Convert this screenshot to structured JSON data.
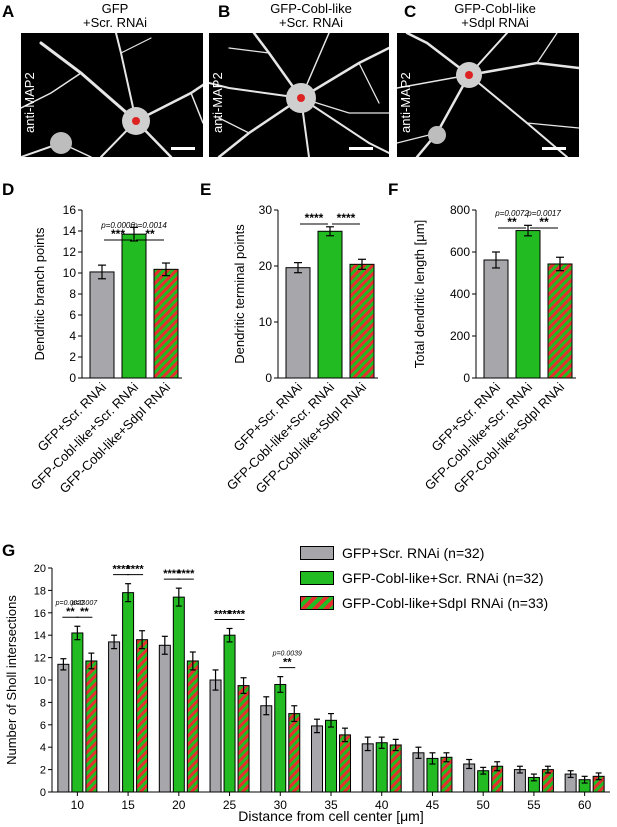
{
  "panels": {
    "A": {
      "letter": "A",
      "title_line1": "GFP",
      "title_line2": "+Scr. RNAi",
      "stain": "anti-MAP2"
    },
    "B": {
      "letter": "B",
      "title_line1": "GFP-Cobl-like",
      "title_line2": "+Scr. RNAi",
      "stain": "anti-MAP2"
    },
    "C": {
      "letter": "C",
      "title_line1": "GFP-Cobl-like",
      "title_line2": "+Sdpl RNAi",
      "stain": "anti-MAP2"
    },
    "D": {
      "letter": "D"
    },
    "E": {
      "letter": "E"
    },
    "F": {
      "letter": "F"
    },
    "G": {
      "letter": "G"
    }
  },
  "colors": {
    "gray": "#a7a7ab",
    "green": "#22bb22",
    "red": "#e53030",
    "bg": "#ffffff"
  },
  "chart_data": [
    {
      "id": "D",
      "type": "bar",
      "categories": [
        "GFP+Scr. RNAi",
        "GFP-Cobl-like+Scr. RNAi",
        "GFP-Cobl-like+SdpI RNAi"
      ],
      "values": [
        10.1,
        13.7,
        10.35
      ],
      "errors": [
        0.65,
        0.65,
        0.6
      ],
      "ylabel": "Dendritic branch points",
      "ylim": [
        0,
        16
      ],
      "yticks": [
        0,
        2,
        4,
        6,
        8,
        10,
        12,
        14,
        16
      ],
      "significance": [
        {
          "from": 0,
          "to": 1,
          "stars": "***",
          "p": "p=0.0006"
        },
        {
          "from": 1,
          "to": 2,
          "stars": "**",
          "p": "p=0.0014"
        }
      ]
    },
    {
      "id": "E",
      "type": "bar",
      "categories": [
        "GFP+Scr. RNAi",
        "GFP-Cobl-like+Scr. RNAi",
        "GFP-Cobl-like+SdpI RNAi"
      ],
      "values": [
        19.7,
        26.2,
        20.3
      ],
      "errors": [
        0.9,
        0.8,
        0.9
      ],
      "ylabel": "Dendritic terminal points",
      "ylim": [
        0,
        30
      ],
      "yticks": [
        0,
        10,
        20,
        30
      ],
      "significance": [
        {
          "from": 0,
          "to": 1,
          "stars": "****",
          "p": ""
        },
        {
          "from": 1,
          "to": 2,
          "stars": "****",
          "p": ""
        }
      ]
    },
    {
      "id": "F",
      "type": "bar",
      "categories": [
        "GFP+Scr. RNAi",
        "GFP-Cobl-like+Scr. RNAi",
        "GFP-Cobl-like+SdpI RNAi"
      ],
      "values": [
        562,
        702,
        543
      ],
      "errors": [
        38,
        25,
        32
      ],
      "ylabel": "Total dendritic length [μm]",
      "ylim": [
        0,
        800
      ],
      "yticks": [
        0,
        200,
        400,
        600,
        800
      ],
      "significance": [
        {
          "from": 0,
          "to": 1,
          "stars": "**",
          "p": "p=0.0072"
        },
        {
          "from": 1,
          "to": 2,
          "stars": "**",
          "p": "p=0.0017"
        }
      ]
    },
    {
      "id": "G",
      "type": "bar",
      "categories": [
        "10",
        "15",
        "20",
        "25",
        "30",
        "35",
        "40",
        "45",
        "50",
        "55",
        "60"
      ],
      "xlabel": "Distance from cell center [μm]",
      "ylabel": "Number of Sholl intersections",
      "ylim": [
        0,
        20
      ],
      "yticks": [
        0,
        2,
        4,
        6,
        8,
        10,
        12,
        14,
        16,
        18,
        20
      ],
      "series": [
        {
          "name": "GFP+Scr. RNAi (n=32)",
          "values": [
            11.4,
            13.4,
            13.1,
            10.0,
            7.7,
            5.9,
            4.3,
            3.5,
            2.5,
            2.0,
            1.6
          ],
          "errors": [
            0.5,
            0.6,
            0.8,
            0.9,
            0.8,
            0.6,
            0.6,
            0.5,
            0.4,
            0.3,
            0.3
          ]
        },
        {
          "name": "GFP-Cobl-like+Scr. RNAi (n=32)",
          "values": [
            14.2,
            17.8,
            17.4,
            14.0,
            9.6,
            6.4,
            4.4,
            3.0,
            1.9,
            1.3,
            1.1
          ],
          "errors": [
            0.6,
            0.8,
            0.8,
            0.6,
            0.7,
            0.6,
            0.5,
            0.5,
            0.3,
            0.3,
            0.3
          ]
        },
        {
          "name": "GFP-Cobl-like+SdpI RNAi (n=33)",
          "values": [
            11.7,
            13.6,
            11.7,
            9.5,
            7.0,
            5.1,
            4.2,
            3.1,
            2.3,
            2.0,
            1.4
          ],
          "errors": [
            0.7,
            0.8,
            0.8,
            0.7,
            0.7,
            0.6,
            0.5,
            0.4,
            0.4,
            0.3,
            0.3
          ]
        }
      ],
      "significance": [
        {
          "group": 0,
          "pairs": [
            {
              "from": 0,
              "to": 1,
              "stars": "**",
              "p": "p=0.0023"
            },
            {
              "from": 1,
              "to": 2,
              "stars": "**",
              "p": "p=0.007"
            }
          ]
        },
        {
          "group": 1,
          "pairs": [
            {
              "from": 0,
              "to": 1,
              "stars": "****",
              "p": ""
            },
            {
              "from": 1,
              "to": 2,
              "stars": "****",
              "p": ""
            }
          ]
        },
        {
          "group": 2,
          "pairs": [
            {
              "from": 0,
              "to": 1,
              "stars": "****",
              "p": ""
            },
            {
              "from": 1,
              "to": 2,
              "stars": "****",
              "p": ""
            }
          ]
        },
        {
          "group": 3,
          "pairs": [
            {
              "from": 0,
              "to": 1,
              "stars": "****",
              "p": ""
            },
            {
              "from": 1,
              "to": 2,
              "stars": "****",
              "p": ""
            }
          ]
        },
        {
          "group": 4,
          "pairs": [
            {
              "from": 1,
              "to": 2,
              "stars": "**",
              "p": "p=0.0039"
            }
          ]
        }
      ],
      "legend_position": "top-right"
    }
  ]
}
